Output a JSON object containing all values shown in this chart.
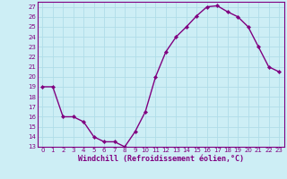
{
  "x": [
    0,
    1,
    2,
    3,
    4,
    5,
    6,
    7,
    8,
    9,
    10,
    11,
    12,
    13,
    14,
    15,
    16,
    17,
    18,
    19,
    20,
    21,
    22,
    23
  ],
  "y": [
    19,
    19,
    16,
    16,
    15.5,
    14,
    13.5,
    13.5,
    13,
    14.5,
    16.5,
    20,
    22.5,
    24,
    25,
    26.1,
    27,
    27.1,
    26.5,
    26,
    25,
    23,
    21,
    20.5
  ],
  "line_color": "#800080",
  "marker": "D",
  "marker_size": 2.2,
  "bg_color": "#cdeef5",
  "grid_color": "#b0dde8",
  "xlabel": "Windchill (Refroidissement éolien,°C)",
  "xlabel_color": "#800080",
  "ylim": [
    13,
    27.5
  ],
  "xlim": [
    -0.5,
    23.5
  ],
  "yticks": [
    13,
    14,
    15,
    16,
    17,
    18,
    19,
    20,
    21,
    22,
    23,
    24,
    25,
    26,
    27
  ],
  "xticks": [
    0,
    1,
    2,
    3,
    4,
    5,
    6,
    7,
    8,
    9,
    10,
    11,
    12,
    13,
    14,
    15,
    16,
    17,
    18,
    19,
    20,
    21,
    22,
    23
  ],
  "tick_fontsize": 5.0,
  "xlabel_fontsize": 6.0,
  "line_width": 1.0
}
